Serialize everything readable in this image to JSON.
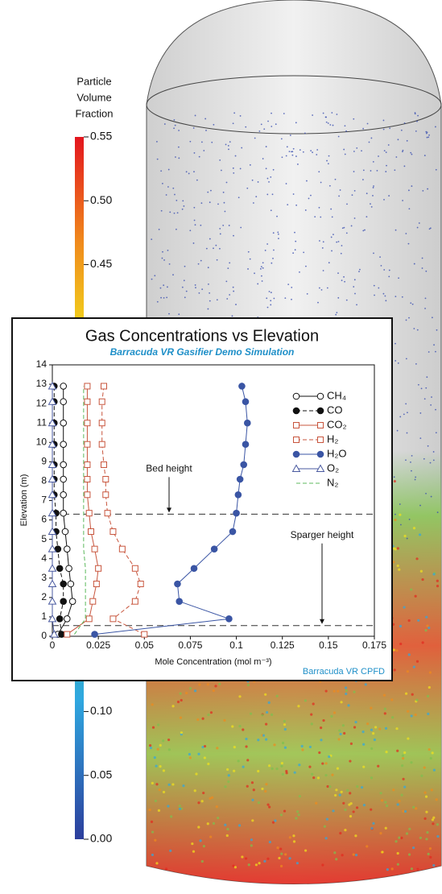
{
  "chart_data": {
    "type": "line",
    "title": "Gas Concentrations vs Elevation",
    "subtitle": "Barracuda VR Gasifier Demo Simulation",
    "xlabel": "Mole Concentration (mol m⁻³)",
    "ylabel": "Elevation (m)",
    "footer": "Barracuda VR CPFD",
    "y": [
      0.1,
      0.9,
      1.8,
      2.7,
      3.5,
      4.5,
      5.4,
      6.35,
      7.3,
      8.1,
      8.85,
      9.9,
      11.0,
      12.1,
      12.9
    ],
    "series": [
      {
        "name": "CH₄",
        "color": "#111111",
        "marker": "circle-open",
        "dashed": false,
        "values": [
          0.003,
          0.008,
          0.011,
          0.01,
          0.009,
          0.008,
          0.007,
          0.006,
          0.006,
          0.006,
          0.006,
          0.006,
          0.006,
          0.006,
          0.006
        ]
      },
      {
        "name": "CO",
        "color": "#111111",
        "marker": "circle-filled",
        "dashed": true,
        "values": [
          0.005,
          0.004,
          0.006,
          0.006,
          0.004,
          0.003,
          0.002,
          0.002,
          0.001,
          0.001,
          0.001,
          0.001,
          0.001,
          0.001,
          0.001
        ]
      },
      {
        "name": "CO₂",
        "color": "#c8553d",
        "marker": "square-open",
        "dashed": false,
        "values": [
          0.008,
          0.02,
          0.022,
          0.024,
          0.025,
          0.023,
          0.021,
          0.02,
          0.019,
          0.019,
          0.019,
          0.019,
          0.019,
          0.019,
          0.019
        ]
      },
      {
        "name": "H₂",
        "color": "#c8553d",
        "marker": "square-open",
        "dashed": true,
        "values": [
          0.05,
          0.033,
          0.045,
          0.048,
          0.045,
          0.038,
          0.033,
          0.03,
          0.029,
          0.029,
          0.028,
          0.027,
          0.027,
          0.027,
          0.028
        ]
      },
      {
        "name": "H₂O",
        "color": "#3a55a4",
        "marker": "circle-filled",
        "dashed": false,
        "values": [
          0.023,
          0.096,
          0.069,
          0.068,
          0.077,
          0.088,
          0.098,
          0.1,
          0.101,
          0.102,
          0.104,
          0.105,
          0.106,
          0.105,
          0.103
        ]
      },
      {
        "name": "O₂",
        "color": "#4a5aa0",
        "marker": "triangle-open",
        "dashed": false,
        "values": [
          0.001,
          0,
          0,
          0,
          0,
          0,
          0,
          0,
          0,
          0,
          0,
          0,
          0,
          0,
          0
        ]
      },
      {
        "name": "N₂",
        "color": "#5cb85c",
        "marker": "none",
        "dashed": true,
        "values": [
          0.012,
          0.018,
          0.018,
          0.018,
          0.018,
          0.017,
          0.017,
          0.017,
          0.017,
          0.017,
          0.017,
          0.017,
          0.017,
          0.017,
          0.017
        ]
      }
    ],
    "hlines": [
      {
        "label": "Bed height",
        "value": 6.3
      },
      {
        "label": "Sparger height",
        "value": 0.55
      }
    ],
    "xlim": [
      0,
      0.175
    ],
    "xticks": [
      0,
      0.025,
      0.05,
      0.075,
      0.1,
      0.125,
      0.15,
      0.175
    ],
    "ylim": [
      0,
      14
    ],
    "yticks": [
      0,
      1,
      2,
      3,
      4,
      5,
      6,
      7,
      8,
      9,
      10,
      11,
      12,
      13,
      14
    ],
    "legend": "upper right"
  },
  "colorbar": {
    "title": [
      "Particle",
      "Volume",
      "Fraction"
    ],
    "clim": [
      0,
      0.55
    ],
    "ticks": [
      0.55,
      0.5,
      0.45,
      0.1,
      0.05,
      0.0
    ]
  }
}
